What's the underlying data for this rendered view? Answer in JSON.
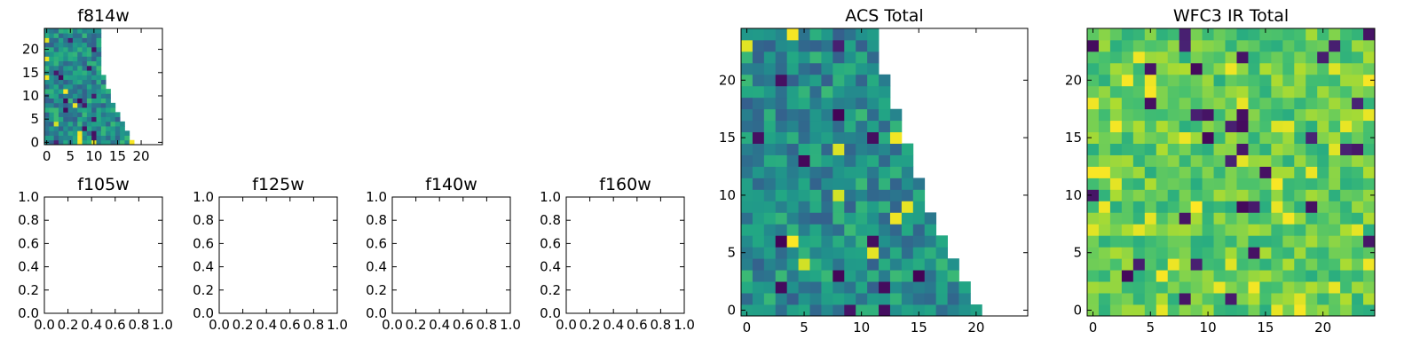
{
  "chart_data": [
    {
      "id": "f814w",
      "type": "heatmap",
      "title": "f814w",
      "empty": false,
      "grid_size": 25,
      "row_lengths": [
        19,
        18,
        18,
        17,
        17,
        16,
        16,
        15,
        15,
        14,
        14,
        14,
        13,
        13,
        13,
        12,
        12,
        12,
        12,
        12,
        12,
        12,
        12,
        12,
        12
      ],
      "xlim": [
        -0.5,
        24.5
      ],
      "ylim": [
        -0.5,
        24.5
      ],
      "xticks": [
        0,
        5,
        10,
        15,
        20
      ],
      "yticks": [
        0,
        5,
        10,
        15,
        20
      ],
      "xtick_labels": [
        "0",
        "5",
        "10",
        "15",
        "20"
      ],
      "ytick_labels": [
        "0",
        "5",
        "10",
        "15",
        "20"
      ],
      "grid": false,
      "colormap": "viridis",
      "value_range": [
        0,
        1
      ],
      "seed": 814
    },
    {
      "id": "f105w",
      "type": "heatmap",
      "title": "f105w",
      "empty": true,
      "xlim": [
        0,
        1
      ],
      "ylim": [
        0,
        1
      ],
      "xticks": [
        0,
        0.2,
        0.4,
        0.6,
        0.8,
        1.0
      ],
      "yticks": [
        0,
        0.2,
        0.4,
        0.6,
        0.8,
        1.0
      ],
      "xtick_labels": [
        "0.0",
        "0.2",
        "0.4",
        "0.6",
        "0.8",
        "1.0"
      ],
      "ytick_labels": [
        "0.0",
        "0.2",
        "0.4",
        "0.6",
        "0.8",
        "1.0"
      ],
      "grid": false
    },
    {
      "id": "f125w",
      "type": "heatmap",
      "title": "f125w",
      "empty": true,
      "xlim": [
        0,
        1
      ],
      "ylim": [
        0,
        1
      ],
      "xticks": [
        0,
        0.2,
        0.4,
        0.6,
        0.8,
        1.0
      ],
      "yticks": [
        0,
        0.2,
        0.4,
        0.6,
        0.8,
        1.0
      ],
      "xtick_labels": [
        "0.0",
        "0.2",
        "0.4",
        "0.6",
        "0.8",
        "1.0"
      ],
      "ytick_labels": [
        "0.0",
        "0.2",
        "0.4",
        "0.6",
        "0.8",
        "1.0"
      ],
      "grid": false
    },
    {
      "id": "f140w",
      "type": "heatmap",
      "title": "f140w",
      "empty": true,
      "xlim": [
        0,
        1
      ],
      "ylim": [
        0,
        1
      ],
      "xticks": [
        0,
        0.2,
        0.4,
        0.6,
        0.8,
        1.0
      ],
      "yticks": [
        0,
        0.2,
        0.4,
        0.6,
        0.8,
        1.0
      ],
      "xtick_labels": [
        "0.0",
        "0.2",
        "0.4",
        "0.6",
        "0.8",
        "1.0"
      ],
      "ytick_labels": [
        "0.0",
        "0.2",
        "0.4",
        "0.6",
        "0.8",
        "1.0"
      ],
      "grid": false
    },
    {
      "id": "f160w",
      "type": "heatmap",
      "title": "f160w",
      "empty": true,
      "xlim": [
        0,
        1
      ],
      "ylim": [
        0,
        1
      ],
      "xticks": [
        0,
        0.2,
        0.4,
        0.6,
        0.8,
        1.0
      ],
      "yticks": [
        0,
        0.2,
        0.4,
        0.6,
        0.8,
        1.0
      ],
      "xtick_labels": [
        "0.0",
        "0.2",
        "0.4",
        "0.6",
        "0.8",
        "1.0"
      ],
      "ytick_labels": [
        "0.0",
        "0.2",
        "0.4",
        "0.6",
        "0.8",
        "1.0"
      ],
      "grid": false
    },
    {
      "id": "acs_total",
      "type": "heatmap",
      "title": "ACS Total",
      "empty": false,
      "grid_size": 25,
      "row_lengths": [
        21,
        20,
        20,
        19,
        19,
        18,
        18,
        17,
        17,
        16,
        16,
        16,
        15,
        15,
        15,
        14,
        14,
        14,
        13,
        13,
        13,
        12,
        12,
        12,
        12
      ],
      "xlim": [
        -0.5,
        24.5
      ],
      "ylim": [
        -0.5,
        24.5
      ],
      "xticks": [
        0,
        5,
        10,
        15,
        20
      ],
      "yticks": [
        0,
        5,
        10,
        15,
        20
      ],
      "xtick_labels": [
        "0",
        "5",
        "10",
        "15",
        "20"
      ],
      "ytick_labels": [
        "0",
        "5",
        "10",
        "15",
        "20"
      ],
      "grid": false,
      "colormap": "viridis",
      "value_range": [
        0,
        1
      ],
      "seed": 2024
    },
    {
      "id": "wfc3_ir_total",
      "type": "heatmap",
      "title": "WFC3 IR Total",
      "empty": false,
      "grid_size": 25,
      "row_lengths": [
        25,
        25,
        25,
        25,
        25,
        25,
        25,
        25,
        25,
        25,
        25,
        25,
        25,
        25,
        25,
        25,
        25,
        25,
        25,
        25,
        25,
        25,
        25,
        25,
        25
      ],
      "xlim": [
        -0.5,
        24.5
      ],
      "ylim": [
        -0.5,
        24.5
      ],
      "xticks": [
        0,
        5,
        10,
        15,
        20
      ],
      "yticks": [
        0,
        5,
        10,
        15,
        20
      ],
      "xtick_labels": [
        "0",
        "5",
        "10",
        "15",
        "20"
      ],
      "ytick_labels": [
        "0",
        "5",
        "10",
        "15",
        "20"
      ],
      "grid": false,
      "colormap": "viridis",
      "value_range": [
        0,
        1
      ],
      "seed": 3100
    }
  ]
}
